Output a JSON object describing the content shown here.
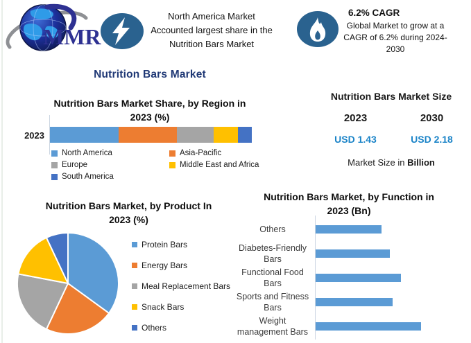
{
  "colors": {
    "navy_title": "#1F3875",
    "value_blue": "#1B84C8",
    "icon_circle": "#2A628F",
    "bar_blue": "#5B9BD5",
    "series_palette": [
      "#5B9BD5",
      "#ED7D31",
      "#A5A5A5",
      "#FFC000",
      "#4472C4"
    ]
  },
  "header": {
    "logo_text": "MMR",
    "highlight_share": {
      "icon": "lightning-bolt",
      "lines": [
        "North America Market",
        "Accounted largest share in the",
        "Nutrition Bars Market"
      ]
    },
    "highlight_cagr": {
      "icon": "flame",
      "title": "6.2% CAGR",
      "lines": [
        "Global Market to grow at a",
        "CAGR of 6.2% during 2024-",
        "2030"
      ]
    }
  },
  "main_title": "Nutrition Bars Market",
  "market_size": {
    "title": "Nutrition Bars Market Size",
    "year_left": "2023",
    "year_right": "2030",
    "value_left": "USD 1.43",
    "value_right": "USD 2.18",
    "note_prefix": "Market Size in ",
    "note_bold": "Billion"
  },
  "chart_data": [
    {
      "type": "bar",
      "subtype": "stacked-horizontal",
      "title": "Nutrition Bars Market Share, by Region in 2023 (%)",
      "title_lines": [
        "Nutrition Bars Market Share, by Region in",
        "2023 (%)"
      ],
      "categories": [
        "2023"
      ],
      "series": [
        {
          "name": "North America",
          "values": [
            34
          ],
          "color": "#5B9BD5"
        },
        {
          "name": "Asia-Pacific",
          "values": [
            29
          ],
          "color": "#ED7D31"
        },
        {
          "name": "Europe",
          "values": [
            18
          ],
          "color": "#A5A5A5"
        },
        {
          "name": "Middle East and Africa",
          "values": [
            12
          ],
          "color": "#FFC000"
        },
        {
          "name": "South America",
          "values": [
            7
          ],
          "color": "#4472C4"
        }
      ],
      "xlim": [
        0,
        100
      ],
      "unit": "%",
      "values_estimated": true,
      "legend_position": "bottom"
    },
    {
      "type": "pie",
      "title": "Nutrition Bars Market, by Product In 2023 (%)",
      "title_lines": [
        "Nutrition Bars Market, by Product In",
        "2023 (%)"
      ],
      "labels": [
        "Protein Bars",
        "Energy Bars",
        "Meal Replacement Bars",
        "Snack Bars",
        "Others"
      ],
      "values": [
        35,
        22,
        21,
        15,
        7
      ],
      "colors": [
        "#5B9BD5",
        "#ED7D31",
        "#A5A5A5",
        "#FFC000",
        "#4472C4"
      ],
      "unit": "%",
      "values_estimated": true,
      "start_angle": 0,
      "legend_position": "right"
    },
    {
      "type": "bar",
      "subtype": "horizontal",
      "title": "Nutrition Bars Market, by Function in 2023 (Bn)",
      "title_lines": [
        "Nutrition Bars Market, by Function in",
        "2023 (Bn)"
      ],
      "categories": [
        "Others",
        "Diabetes-Friendly Bars",
        "Functional Food Bars",
        "Sports and Fitness Bars",
        "Weight management Bars"
      ],
      "category_lines": [
        [
          "Others"
        ],
        [
          "Diabetes-Friendly",
          "Bars"
        ],
        [
          "Functional Food",
          "Bars"
        ],
        [
          "Sports and Fitness",
          "Bars"
        ],
        [
          "Weight",
          "management Bars"
        ]
      ],
      "values": [
        0.23,
        0.26,
        0.3,
        0.27,
        0.37
      ],
      "color": "#5B9BD5",
      "xlim": [
        0,
        0.45
      ],
      "unit": "Bn",
      "values_estimated": true,
      "grid": false
    }
  ]
}
